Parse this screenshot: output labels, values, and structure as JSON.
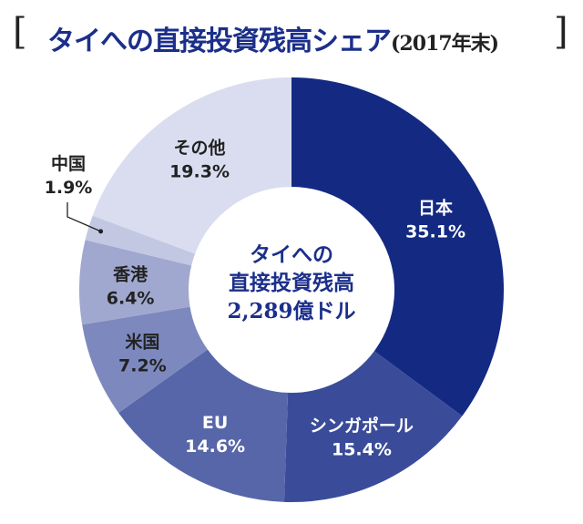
{
  "chart_data": {
    "type": "pie",
    "donut": true,
    "title": "タイへの直接投資残高シェア",
    "subtitle": "(2017年末)",
    "center_label": [
      "タイへの",
      "直接投資残高",
      "2,289億ドル"
    ],
    "slices": [
      {
        "label": "日本",
        "value": 35.1,
        "display": "35.1%",
        "color": "#142a82",
        "text_color": "#ffffff"
      },
      {
        "label": "シンガポール",
        "value": 15.4,
        "display": "15.4%",
        "color": "#3a4c99",
        "text_color": "#ffffff"
      },
      {
        "label": "EU",
        "value": 14.6,
        "display": "14.6%",
        "color": "#5666a9",
        "text_color": "#ffffff"
      },
      {
        "label": "米国",
        "value": 7.2,
        "display": "7.2%",
        "color": "#7d89be",
        "text_color": "#222222"
      },
      {
        "label": "香港",
        "value": 6.4,
        "display": "6.4%",
        "color": "#a0a8d0",
        "text_color": "#222222"
      },
      {
        "label": "中国",
        "value": 1.9,
        "display": "1.9%",
        "color": "#c3c8e2",
        "text_color": "#222222",
        "external": true
      },
      {
        "label": "その他",
        "value": 19.3,
        "display": "19.3%",
        "color": "#d9ddef",
        "text_color": "#222222"
      }
    ]
  }
}
